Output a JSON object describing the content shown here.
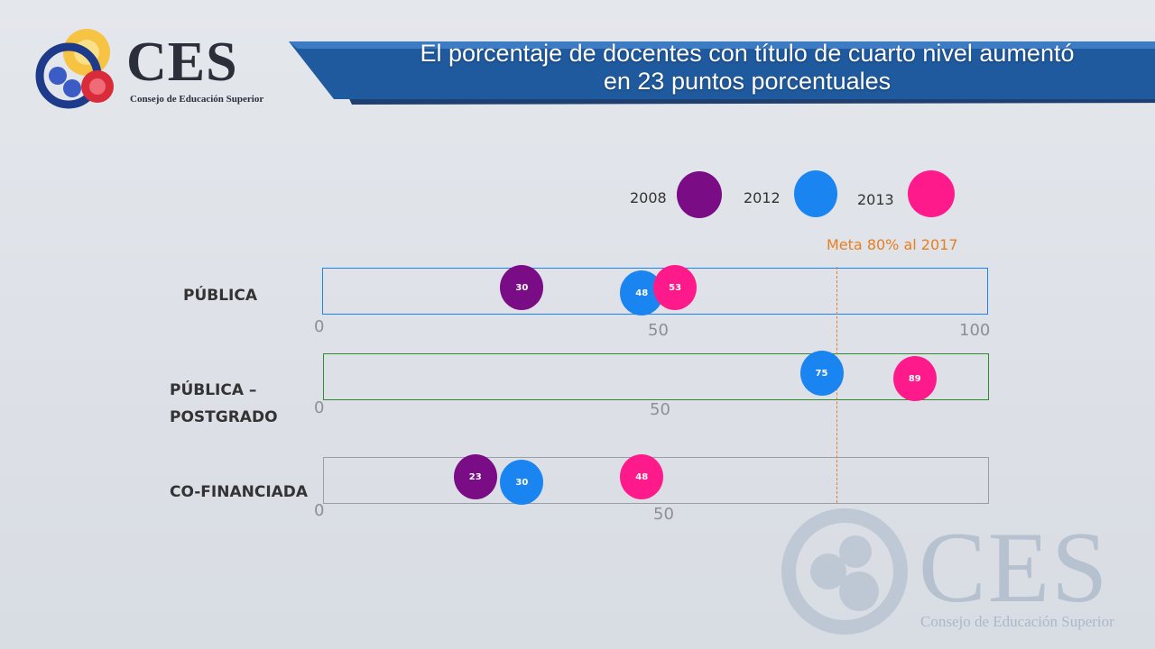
{
  "logo": {
    "title": "CES",
    "subtitle": "Consejo de Educación Superior"
  },
  "title_line1": "El porcentaje de docentes con título de cuarto nivel  aumentó",
  "title_line2": "en 23 puntos porcentuales",
  "legend": [
    {
      "label": "2008",
      "color": "#7a0d86"
    },
    {
      "label": "2012",
      "color": "#1a85f0"
    },
    {
      "label": "2013",
      "color": "#ff1a8c"
    }
  ],
  "meta_label": "Meta 80% al 2017",
  "chart_data": {
    "type": "scatter",
    "title": "El porcentaje de docentes con título de cuarto nivel  aumentó en 23 puntos porcentuales",
    "xlim": [
      0,
      100
    ],
    "reference_line": {
      "value": 80,
      "label": "Meta 80% al 2017"
    },
    "series_names": [
      "2008",
      "2012",
      "2013"
    ],
    "rows": [
      {
        "label": "PÚBLICA",
        "ticks": [
          "0",
          "50",
          "100"
        ],
        "points": [
          {
            "series": "2008",
            "value": 30
          },
          {
            "series": "2012",
            "value": 48
          },
          {
            "series": "2013",
            "value": 53
          }
        ]
      },
      {
        "label": "PÚBLICA – POSTGRADO",
        "ticks": [
          "0",
          "50"
        ],
        "points": [
          {
            "series": "2012",
            "value": 75
          },
          {
            "series": "2013",
            "value": 89
          }
        ]
      },
      {
        "label": "CO-FINANCIADA",
        "ticks": [
          "0",
          "50"
        ],
        "points": [
          {
            "series": "2008",
            "value": 23
          },
          {
            "series": "2012",
            "value": 30
          },
          {
            "series": "2013",
            "value": 48
          }
        ]
      }
    ]
  },
  "watermark": {
    "title": "CES",
    "subtitle": "Consejo de Educación Superior"
  }
}
